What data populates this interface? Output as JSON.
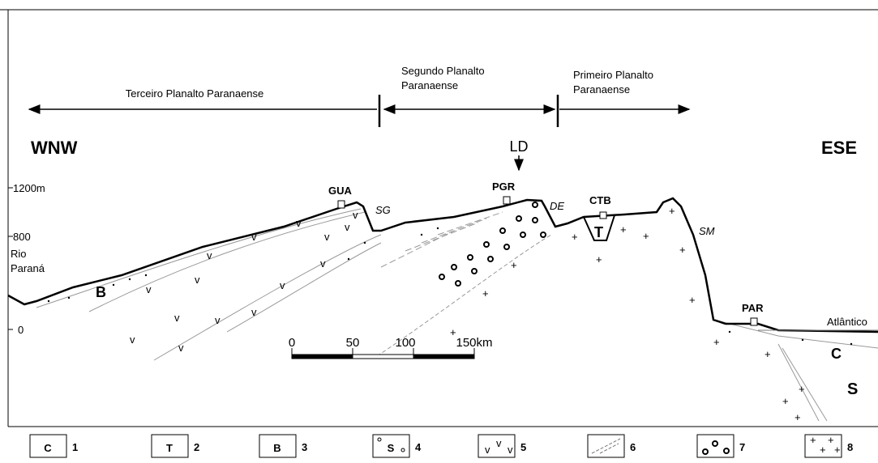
{
  "regions": {
    "terceiro": "Terceiro Planalto Paranaense",
    "segundo": [
      "Segundo Planalto",
      "Paranaense"
    ],
    "primeiro": [
      "Primeiro Planalto",
      "Paranaense"
    ]
  },
  "directions": {
    "west": "WNW",
    "east": "ESE"
  },
  "lineament": "LD",
  "elevations": [
    "1200m",
    "800",
    "0"
  ],
  "places": {
    "river": [
      "Rio",
      "Paraná"
    ],
    "gua": "GUA",
    "pgr": "PGR",
    "ctb": "CTB",
    "par": "PAR",
    "ocean": "Atlântico"
  },
  "structures": {
    "sg": "SG",
    "de": "DE",
    "sm": "SM"
  },
  "units": {
    "b": "B",
    "t": "T",
    "c": "C",
    "s": "S"
  },
  "scale": [
    "0",
    "50",
    "100",
    "150km"
  ],
  "legend": [
    {
      "symbol": "C",
      "number": "1"
    },
    {
      "symbol": "T",
      "number": "2"
    },
    {
      "symbol": "B",
      "number": "3"
    },
    {
      "symbol": "S",
      "number": "4"
    },
    {
      "number": "5"
    },
    {
      "number": "6"
    },
    {
      "number": "7"
    },
    {
      "number": "8"
    }
  ]
}
